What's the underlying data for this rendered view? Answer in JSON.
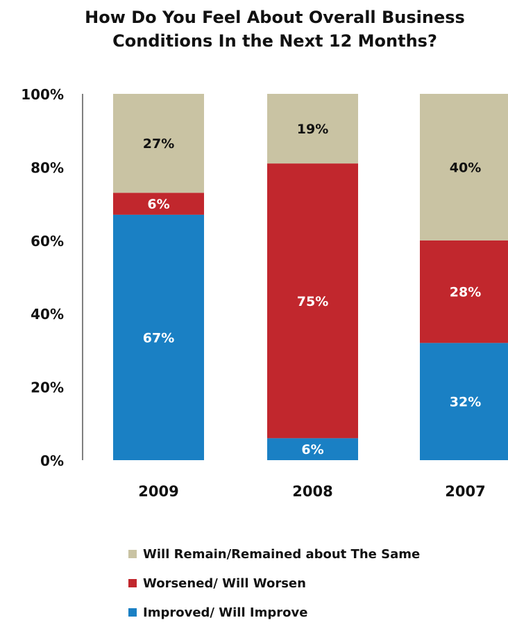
{
  "chart_data": {
    "type": "bar",
    "stacked": true,
    "title_lines": [
      "How Do You Feel About Overall Business",
      "Conditions In the Next 12 Months?"
    ],
    "categories": [
      "2009",
      "2008",
      "2007"
    ],
    "series": [
      {
        "name": "Improved/ Will Improve",
        "color": "#1a80c4",
        "values": [
          67,
          6,
          32
        ],
        "labels": [
          "67%",
          "6%",
          "32%"
        ]
      },
      {
        "name": "Worsened/ Will Worsen",
        "color": "#c1272d",
        "values": [
          6,
          75,
          28
        ],
        "labels": [
          "6%",
          "75%",
          "28%"
        ]
      },
      {
        "name": "Will Remain/Remained about The Same",
        "color": "#c9c3a3",
        "values": [
          27,
          19,
          40
        ],
        "labels": [
          "27%",
          "19%",
          "40%"
        ]
      }
    ],
    "legend_order": [
      2,
      1,
      0
    ],
    "y_ticks": [
      0,
      20,
      40,
      60,
      80,
      100
    ],
    "y_tick_labels": [
      "0%",
      "20%",
      "40%",
      "60%",
      "80%",
      "100%"
    ],
    "ylim": [
      0,
      100
    ],
    "grid": false,
    "legend_position": "bottom"
  }
}
